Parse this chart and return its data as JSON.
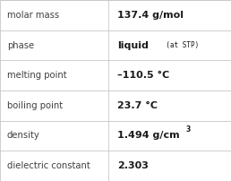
{
  "rows": [
    {
      "label": "molar mass",
      "value": "137.4 g/mol",
      "type": "normal"
    },
    {
      "label": "phase",
      "value": "liquid",
      "type": "phase"
    },
    {
      "label": "melting point",
      "value": "–110.5 °C",
      "type": "normal"
    },
    {
      "label": "boiling point",
      "value": "23.7 °C",
      "type": "normal"
    },
    {
      "label": "density",
      "value": "1.494 g/cm",
      "type": "density"
    },
    {
      "label": "dielectric constant",
      "value": "2.303",
      "type": "normal"
    }
  ],
  "col_split": 0.468,
  "bg_color": "#ffffff",
  "border_color": "#c8c8c8",
  "label_font_size": 7.2,
  "value_font_size": 8.0,
  "label_color": "#404040",
  "value_color": "#1a1a1a",
  "phase_suffix": "(at STP)",
  "phase_suffix_fontsize": 5.5
}
